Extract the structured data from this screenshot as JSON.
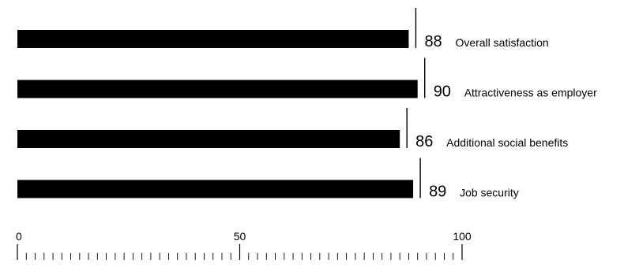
{
  "chart_data": {
    "type": "bar",
    "orientation": "horizontal",
    "categories": [
      "Overall satisfaction",
      "Attractiveness as employer",
      "Additional social benefits",
      "Job security"
    ],
    "values": [
      88,
      90,
      86,
      89
    ],
    "title": "",
    "xlabel": "",
    "ylabel": "",
    "xlim": [
      0,
      100
    ],
    "major_ticks": [
      0,
      50,
      100
    ],
    "minor_tick_step": 2,
    "grid": false,
    "legend": "none",
    "bar_color": "#000000",
    "text_color": "#000000"
  }
}
